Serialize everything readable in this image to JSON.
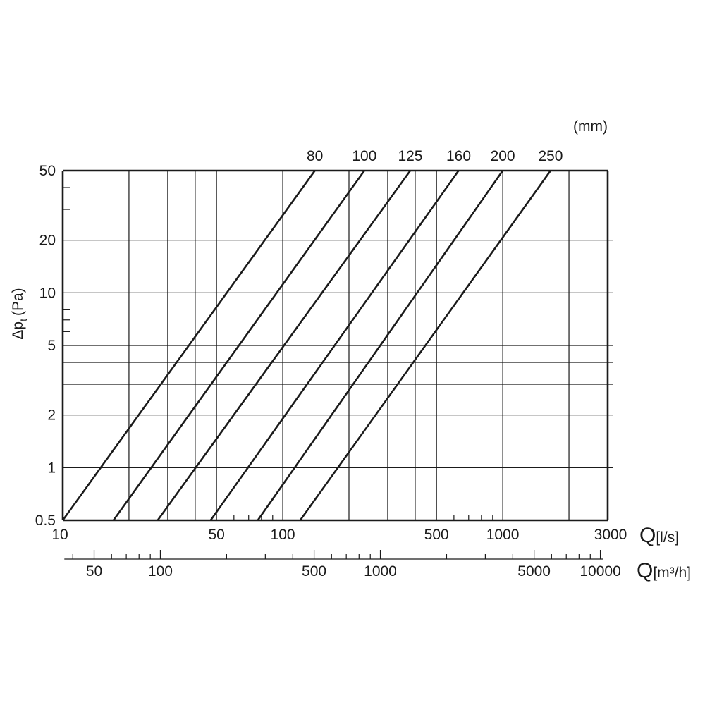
{
  "chart_data": {
    "type": "line",
    "scale": "log-log",
    "unit_label": "(mm)",
    "ylabel": "Δp",
    "ylabel_sub": "t",
    "ylabel_unit": "(Pa)",
    "x_title_letter": "Q",
    "x_title_unit": "[l/s]",
    "x2_title_letter": "Q",
    "x2_title_unit": "[m³/h]",
    "xlim": [
      10,
      3000
    ],
    "ylim": [
      0.5,
      50
    ],
    "x_ticks": [
      "10",
      "50",
      "100",
      "500",
      "1000",
      "3000"
    ],
    "x_tick_values": [
      10,
      50,
      100,
      500,
      1000,
      3000
    ],
    "y_ticks": [
      "0.5",
      "1",
      "2",
      "5",
      "10",
      "20",
      "50"
    ],
    "y_tick_values": [
      0.5,
      1,
      2,
      5,
      10,
      20,
      50
    ],
    "x_grid": [
      20,
      30,
      40,
      50,
      100,
      200,
      300,
      400,
      500,
      1000,
      2000
    ],
    "y_grid": [
      1,
      2,
      3,
      4,
      5,
      10,
      20
    ],
    "x_minor_ticks": [
      60,
      70,
      80,
      90,
      600,
      700,
      800,
      900
    ],
    "y_minor_ticks": [
      30,
      40,
      6,
      7,
      8
    ],
    "x2_ticks": [
      "50",
      "100",
      "500",
      "1000",
      "5000",
      "10000"
    ],
    "x2_tick_values": [
      50,
      100,
      500,
      1000,
      5000,
      10000
    ],
    "x2_minor_ticks": [
      40,
      60,
      70,
      80,
      90,
      200,
      300,
      400,
      600,
      700,
      800,
      900,
      2000,
      3000,
      4000,
      6000,
      7000,
      8000,
      9000
    ],
    "m3h_per_ls": 3.6,
    "series": [
      {
        "name": "80",
        "points": [
          [
            10,
            0.5
          ],
          [
            140,
            50
          ]
        ]
      },
      {
        "name": "100",
        "points": [
          [
            17,
            0.5
          ],
          [
            235,
            50
          ]
        ]
      },
      {
        "name": "125",
        "points": [
          [
            27,
            0.5
          ],
          [
            380,
            50
          ]
        ]
      },
      {
        "name": "160",
        "points": [
          [
            47,
            0.5
          ],
          [
            630,
            50
          ]
        ]
      },
      {
        "name": "200",
        "points": [
          [
            77,
            0.5
          ],
          [
            1000,
            50
          ]
        ]
      },
      {
        "name": "250",
        "points": [
          [
            120,
            0.5
          ],
          [
            1650,
            50
          ]
        ]
      }
    ]
  }
}
